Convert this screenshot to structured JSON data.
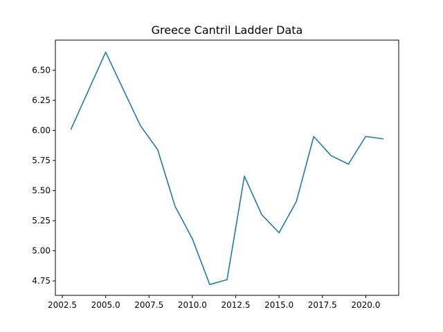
{
  "chart_data": {
    "type": "line",
    "title": "Greece Cantril Ladder Data",
    "xlabel": "",
    "ylabel": "",
    "xlim": [
      2002.1,
      2021.9
    ],
    "ylim": [
      4.63,
      6.75
    ],
    "xticks": [
      2002.5,
      2005.0,
      2007.5,
      2010.0,
      2012.5,
      2015.0,
      2017.5,
      2020.0
    ],
    "xtick_labels": [
      "2002.5",
      "2005.0",
      "2007.5",
      "2010.0",
      "2012.5",
      "2015.0",
      "2017.5",
      "2020.0"
    ],
    "yticks": [
      4.75,
      5.0,
      5.25,
      5.5,
      5.75,
      6.0,
      6.25,
      6.5
    ],
    "ytick_labels": [
      "4.75",
      "5.00",
      "5.25",
      "5.50",
      "5.75",
      "6.00",
      "6.25",
      "6.50"
    ],
    "grid": false,
    "series": [
      {
        "color": "#1f77b4",
        "x": [
          2003,
          2005,
          2007,
          2008,
          2009,
          2010,
          2011,
          2012,
          2013,
          2014,
          2015,
          2016,
          2017,
          2018,
          2019,
          2020,
          2021
        ],
        "y": [
          6.01,
          6.65,
          6.04,
          5.84,
          5.37,
          5.1,
          4.72,
          4.76,
          5.62,
          5.3,
          5.15,
          5.41,
          5.95,
          5.79,
          5.72,
          5.95,
          5.93
        ]
      }
    ]
  }
}
